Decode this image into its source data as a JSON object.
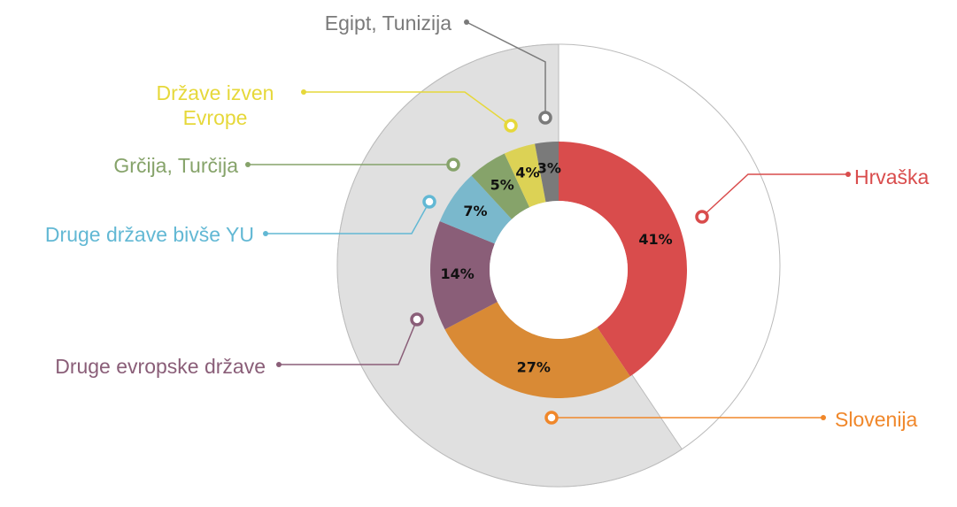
{
  "chart_data": {
    "type": "pie",
    "categories": [
      "Hrvaška",
      "Slovenija",
      "Druge evropske države",
      "Druge države bivše YU",
      "Grčija, Turčija",
      "Države izven Evrope",
      "Egipt, Tunizija"
    ],
    "values": [
      41,
      27,
      14,
      7,
      5,
      4,
      3
    ],
    "value_labels": [
      "41%",
      "27%",
      "14%",
      "7%",
      "5%",
      "4%",
      "3%"
    ],
    "colors": [
      "#d94c4c",
      "#d98a35",
      "#8a5e78",
      "#7ab8cc",
      "#86a36a",
      "#dcd255",
      "#7a7a7a"
    ],
    "donut": true
  }
}
